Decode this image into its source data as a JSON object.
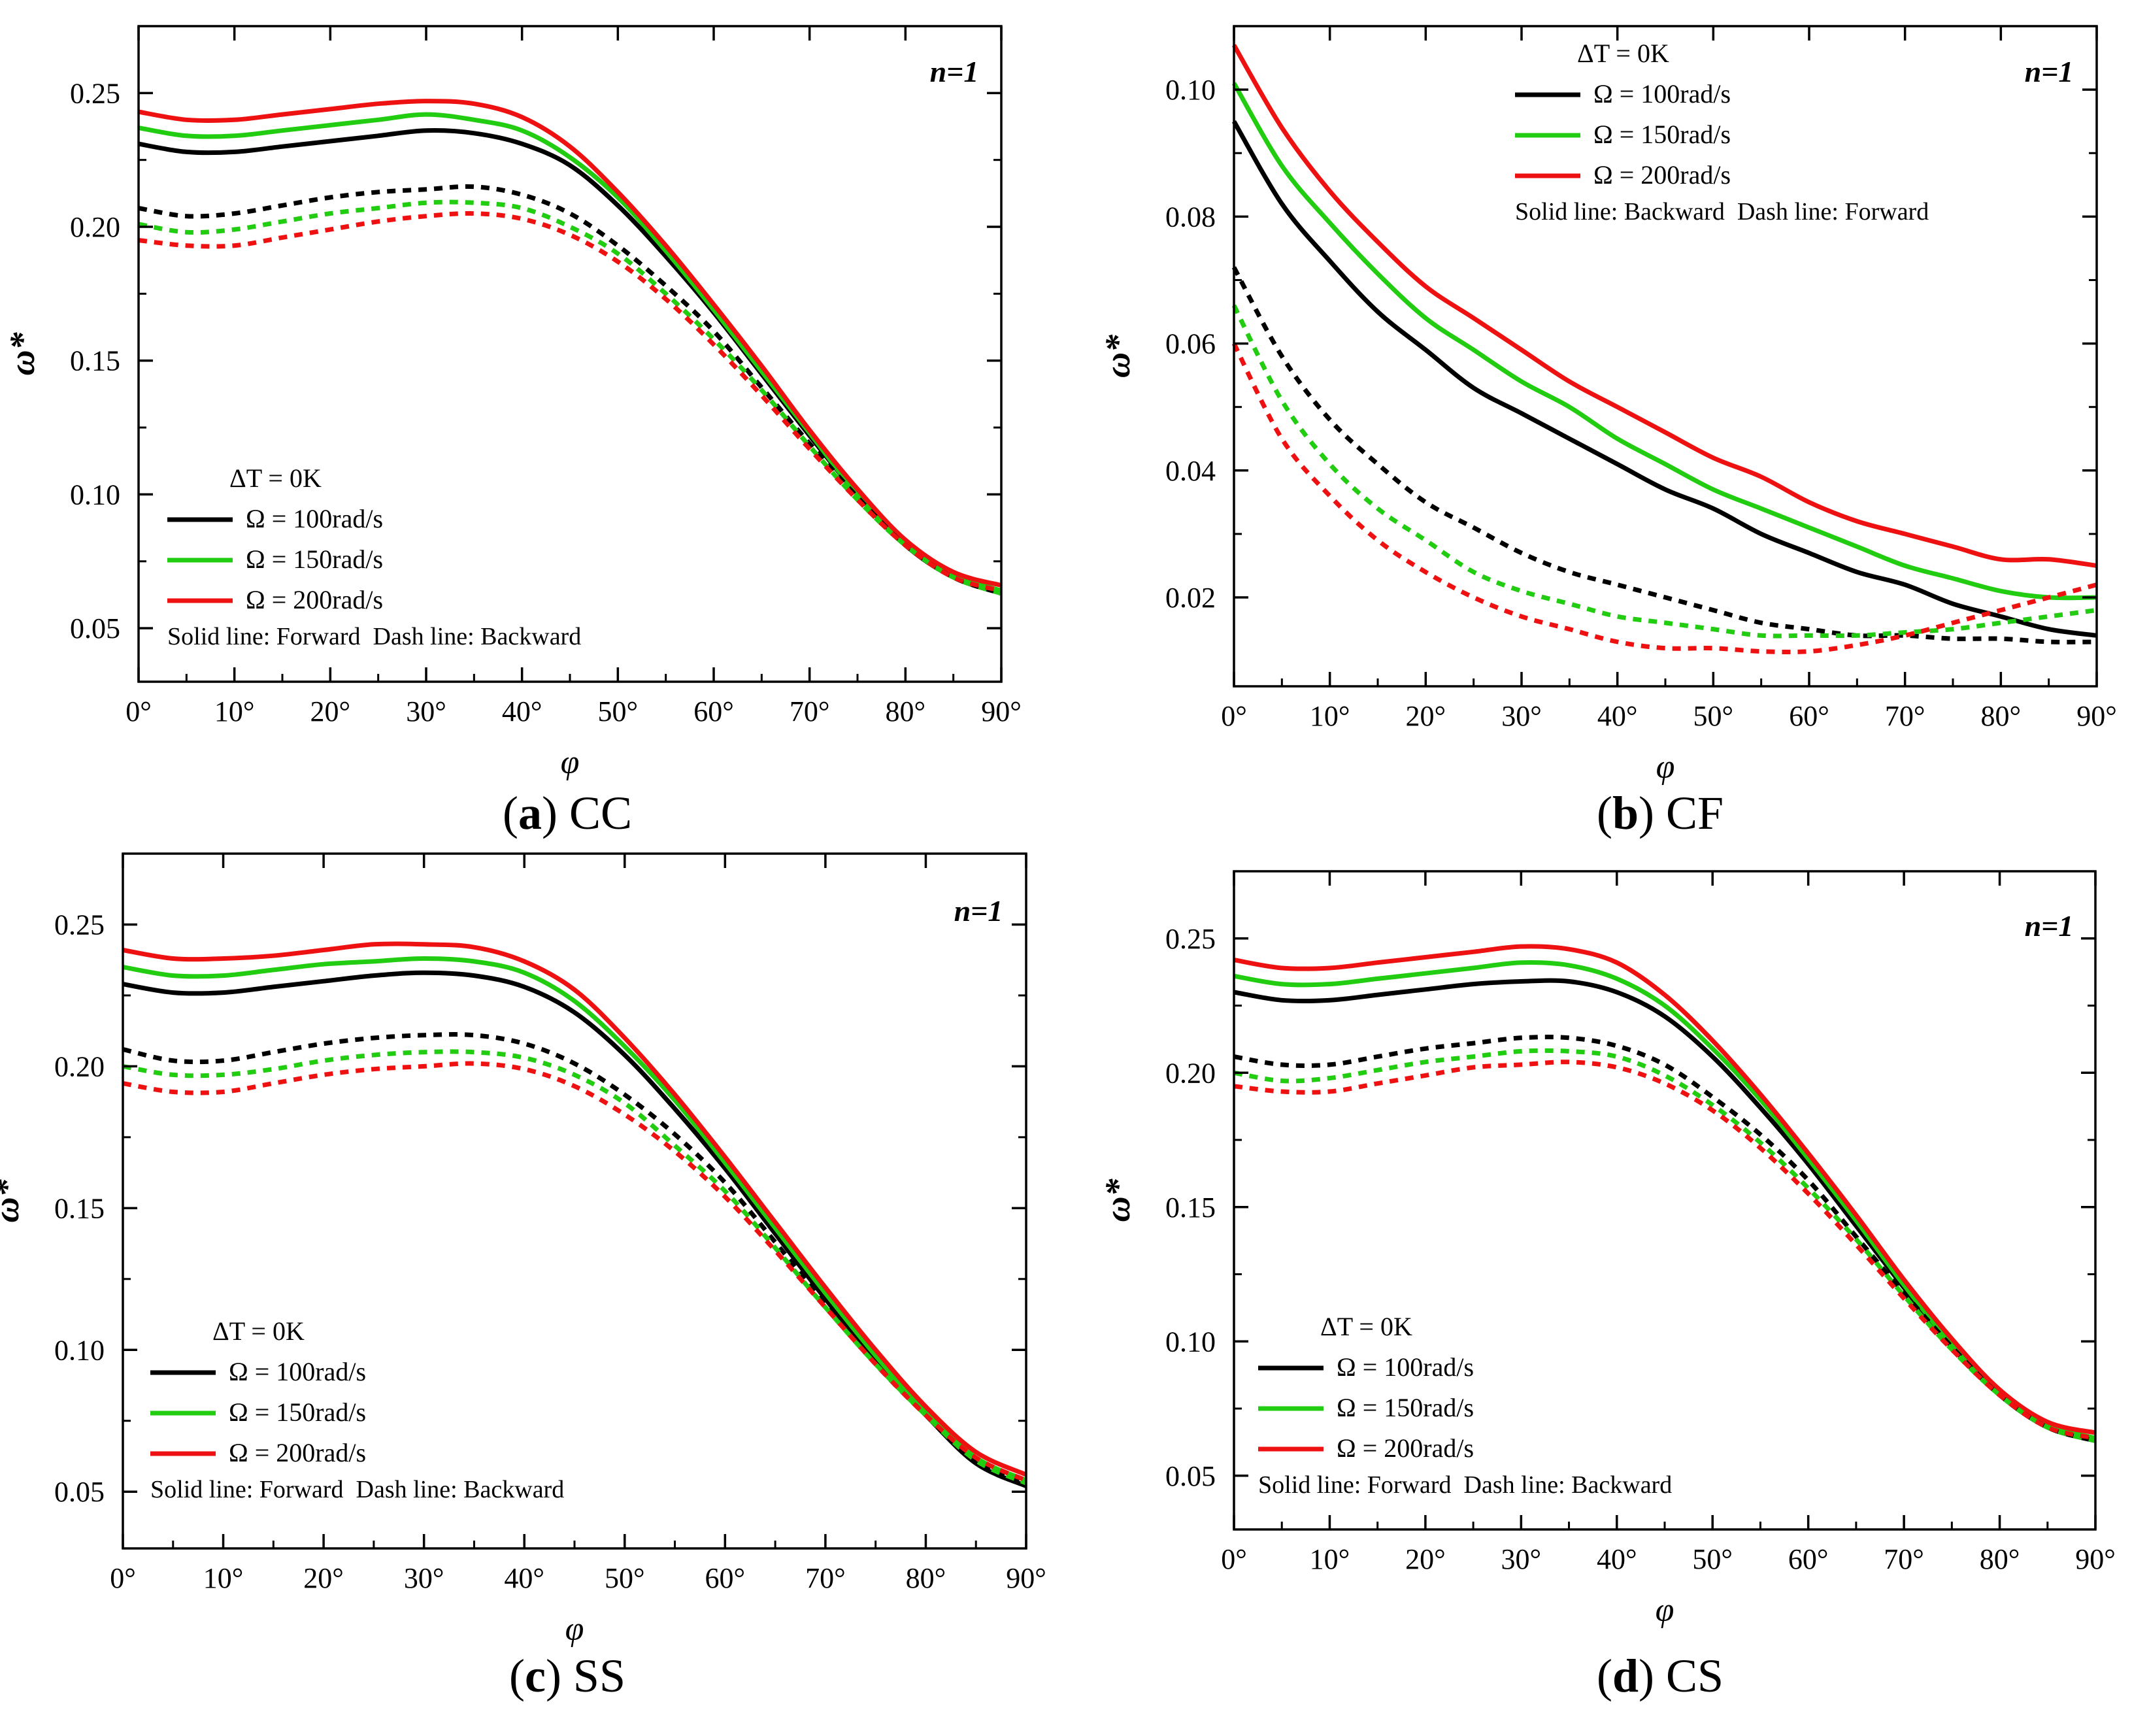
{
  "chart_data": [
    {
      "type": "line",
      "panel_letter": "a",
      "panel_name": "CC",
      "xlabel": "φ",
      "ylabel": "ω*",
      "xlim": [
        0,
        90
      ],
      "ylim": [
        0.03,
        0.275
      ],
      "xticks": [
        "0°",
        "10°",
        "20°",
        "30°",
        "40°",
        "50°",
        "60°",
        "70°",
        "80°",
        "90°"
      ],
      "yticks": [
        "0.05",
        "0.10",
        "0.15",
        "0.20",
        "0.25"
      ],
      "annotation": "n=1",
      "legend": {
        "title": "ΔT = 0K",
        "entries": [
          "Ω = 100rad/s",
          "Ω = 150rad/s",
          "Ω = 200rad/s"
        ],
        "colors": [
          "#000000",
          "#22cc11",
          "#ee1111"
        ],
        "note": "Solid line: Forward  Dash line: Backward",
        "position": "bottom-left"
      },
      "x": [
        0,
        5,
        10,
        15,
        20,
        25,
        30,
        35,
        40,
        45,
        50,
        55,
        60,
        65,
        70,
        75,
        80,
        85,
        90
      ],
      "series": [
        {
          "name": "Ω = 100rad/s",
          "style": "solid",
          "values": [
            0.231,
            0.228,
            0.228,
            0.23,
            0.232,
            0.234,
            0.236,
            0.235,
            0.231,
            0.223,
            0.208,
            0.189,
            0.168,
            0.145,
            0.122,
            0.1,
            0.081,
            0.069,
            0.063
          ]
        },
        {
          "name": "Ω = 150rad/s",
          "style": "solid",
          "values": [
            0.237,
            0.234,
            0.234,
            0.236,
            0.238,
            0.24,
            0.242,
            0.24,
            0.236,
            0.226,
            0.211,
            0.191,
            0.169,
            0.146,
            0.123,
            0.1,
            0.082,
            0.07,
            0.064
          ]
        },
        {
          "name": "Ω = 200rad/s",
          "style": "solid",
          "values": [
            0.243,
            0.24,
            0.24,
            0.242,
            0.244,
            0.246,
            0.247,
            0.246,
            0.241,
            0.23,
            0.213,
            0.193,
            0.171,
            0.148,
            0.124,
            0.102,
            0.083,
            0.071,
            0.066
          ]
        },
        {
          "name": "Ω = 100rad/s",
          "style": "dashed",
          "values": [
            0.207,
            0.204,
            0.205,
            0.208,
            0.211,
            0.213,
            0.214,
            0.215,
            0.212,
            0.205,
            0.193,
            0.178,
            0.161,
            0.14,
            0.119,
            0.099,
            0.081,
            0.069,
            0.063
          ]
        },
        {
          "name": "Ω = 150rad/s",
          "style": "dashed",
          "values": [
            0.201,
            0.198,
            0.199,
            0.202,
            0.205,
            0.207,
            0.209,
            0.209,
            0.207,
            0.2,
            0.19,
            0.175,
            0.158,
            0.139,
            0.118,
            0.098,
            0.081,
            0.069,
            0.063
          ]
        },
        {
          "name": "Ω = 200rad/s",
          "style": "dashed",
          "values": [
            0.195,
            0.193,
            0.193,
            0.196,
            0.199,
            0.202,
            0.204,
            0.205,
            0.203,
            0.197,
            0.187,
            0.173,
            0.156,
            0.137,
            0.117,
            0.098,
            0.081,
            0.069,
            0.064
          ]
        }
      ]
    },
    {
      "type": "line",
      "panel_letter": "b",
      "panel_name": "CF",
      "xlabel": "φ",
      "ylabel": "ω*",
      "xlim": [
        0,
        90
      ],
      "ylim": [
        0.006,
        0.11
      ],
      "xticks": [
        "0°",
        "10°",
        "20°",
        "30°",
        "40°",
        "50°",
        "60°",
        "70°",
        "80°",
        "90°"
      ],
      "yticks": [
        "0.02",
        "0.04",
        "0.06",
        "0.08",
        "0.10"
      ],
      "annotation": "n=1",
      "legend": {
        "title": "ΔT = 0K",
        "entries": [
          "Ω = 100rad/s",
          "Ω = 150rad/s",
          "Ω = 200rad/s"
        ],
        "colors": [
          "#000000",
          "#22cc11",
          "#ee1111"
        ],
        "note": "Solid line: Backward  Dash line: Forward",
        "position": "top-center"
      },
      "x": [
        0,
        5,
        10,
        15,
        20,
        25,
        30,
        35,
        40,
        45,
        50,
        55,
        60,
        65,
        70,
        75,
        80,
        85,
        90
      ],
      "series": [
        {
          "name": "Ω = 100rad/s",
          "style": "solid",
          "values": [
            0.095,
            0.082,
            0.073,
            0.065,
            0.059,
            0.053,
            0.049,
            0.045,
            0.041,
            0.037,
            0.034,
            0.03,
            0.027,
            0.024,
            0.022,
            0.019,
            0.017,
            0.015,
            0.014
          ]
        },
        {
          "name": "Ω = 150rad/s",
          "style": "solid",
          "values": [
            0.101,
            0.088,
            0.079,
            0.071,
            0.064,
            0.059,
            0.054,
            0.05,
            0.045,
            0.041,
            0.037,
            0.034,
            0.031,
            0.028,
            0.025,
            0.023,
            0.021,
            0.02,
            0.02
          ]
        },
        {
          "name": "Ω = 200rad/s",
          "style": "solid",
          "values": [
            0.107,
            0.094,
            0.084,
            0.076,
            0.069,
            0.064,
            0.059,
            0.054,
            0.05,
            0.046,
            0.042,
            0.039,
            0.035,
            0.032,
            0.03,
            0.028,
            0.026,
            0.026,
            0.025
          ]
        },
        {
          "name": "Ω = 100rad/s",
          "style": "dashed",
          "values": [
            0.072,
            0.058,
            0.048,
            0.041,
            0.035,
            0.031,
            0.027,
            0.024,
            0.022,
            0.02,
            0.018,
            0.016,
            0.015,
            0.014,
            0.014,
            0.0135,
            0.0135,
            0.013,
            0.013
          ]
        },
        {
          "name": "Ω = 150rad/s",
          "style": "dashed",
          "values": [
            0.066,
            0.051,
            0.041,
            0.034,
            0.029,
            0.024,
            0.021,
            0.019,
            0.017,
            0.016,
            0.015,
            0.014,
            0.014,
            0.014,
            0.0145,
            0.015,
            0.016,
            0.017,
            0.018
          ]
        },
        {
          "name": "Ω = 200rad/s",
          "style": "dashed",
          "values": [
            0.06,
            0.045,
            0.036,
            0.029,
            0.024,
            0.02,
            0.017,
            0.015,
            0.013,
            0.012,
            0.012,
            0.0115,
            0.0115,
            0.0125,
            0.014,
            0.016,
            0.018,
            0.02,
            0.022
          ]
        }
      ]
    },
    {
      "type": "line",
      "panel_letter": "c",
      "panel_name": "SS",
      "xlabel": "φ",
      "ylabel": "ω*",
      "xlim": [
        0,
        90
      ],
      "ylim": [
        0.03,
        0.275
      ],
      "xticks": [
        "0°",
        "10°",
        "20°",
        "30°",
        "40°",
        "50°",
        "60°",
        "70°",
        "80°",
        "90°"
      ],
      "yticks": [
        "0.05",
        "0.10",
        "0.15",
        "0.20",
        "0.25"
      ],
      "annotation": "n=1",
      "legend": {
        "title": "ΔT = 0K",
        "entries": [
          "Ω = 100rad/s",
          "Ω = 150rad/s",
          "Ω = 200rad/s"
        ],
        "colors": [
          "#000000",
          "#22cc11",
          "#ee1111"
        ],
        "note": "Solid line: Forward  Dash line: Backward",
        "position": "bottom-left"
      },
      "x": [
        0,
        5,
        10,
        15,
        20,
        25,
        30,
        35,
        40,
        45,
        50,
        55,
        60,
        65,
        70,
        75,
        80,
        85,
        90
      ],
      "series": [
        {
          "name": "Ω = 100rad/s",
          "style": "solid",
          "values": [
            0.229,
            0.226,
            0.226,
            0.228,
            0.23,
            0.232,
            0.233,
            0.232,
            0.228,
            0.219,
            0.204,
            0.185,
            0.164,
            0.141,
            0.118,
            0.096,
            0.077,
            0.06,
            0.052
          ]
        },
        {
          "name": "Ω = 150rad/s",
          "style": "solid",
          "values": [
            0.235,
            0.232,
            0.232,
            0.234,
            0.236,
            0.237,
            0.238,
            0.237,
            0.233,
            0.223,
            0.207,
            0.188,
            0.166,
            0.143,
            0.12,
            0.098,
            0.078,
            0.062,
            0.054
          ]
        },
        {
          "name": "Ω = 200rad/s",
          "style": "solid",
          "values": [
            0.241,
            0.238,
            0.238,
            0.239,
            0.241,
            0.243,
            0.243,
            0.242,
            0.237,
            0.227,
            0.21,
            0.19,
            0.168,
            0.145,
            0.122,
            0.1,
            0.08,
            0.064,
            0.056
          ]
        },
        {
          "name": "Ω = 100rad/s",
          "style": "dashed",
          "values": [
            0.206,
            0.202,
            0.202,
            0.205,
            0.208,
            0.21,
            0.211,
            0.211,
            0.208,
            0.201,
            0.19,
            0.176,
            0.159,
            0.138,
            0.116,
            0.095,
            0.077,
            0.061,
            0.053
          ]
        },
        {
          "name": "Ω = 150rad/s",
          "style": "dashed",
          "values": [
            0.2,
            0.197,
            0.197,
            0.199,
            0.202,
            0.204,
            0.205,
            0.205,
            0.203,
            0.197,
            0.187,
            0.172,
            0.156,
            0.136,
            0.115,
            0.095,
            0.077,
            0.061,
            0.053
          ]
        },
        {
          "name": "Ω = 200rad/s",
          "style": "dashed",
          "values": [
            0.194,
            0.191,
            0.191,
            0.194,
            0.197,
            0.199,
            0.2,
            0.201,
            0.199,
            0.193,
            0.183,
            0.17,
            0.154,
            0.135,
            0.115,
            0.095,
            0.077,
            0.062,
            0.054
          ]
        }
      ]
    },
    {
      "type": "line",
      "panel_letter": "d",
      "panel_name": "CS",
      "xlabel": "φ",
      "ylabel": "ω*",
      "xlim": [
        0,
        90
      ],
      "ylim": [
        0.03,
        0.275
      ],
      "xticks": [
        "0°",
        "10°",
        "20°",
        "30°",
        "40°",
        "50°",
        "60°",
        "70°",
        "80°",
        "90°"
      ],
      "yticks": [
        "0.05",
        "0.10",
        "0.15",
        "0.20",
        "0.25"
      ],
      "annotation": "n=1",
      "legend": {
        "title": "ΔT = 0K",
        "entries": [
          "Ω = 100rad/s",
          "Ω = 150rad/s",
          "Ω = 200rad/s"
        ],
        "colors": [
          "#000000",
          "#22cc11",
          "#ee1111"
        ],
        "note": "Solid line: Forward  Dash line: Backward",
        "position": "bottom-left"
      },
      "x": [
        0,
        5,
        10,
        15,
        20,
        25,
        30,
        35,
        40,
        45,
        50,
        55,
        60,
        65,
        70,
        75,
        80,
        85,
        90
      ],
      "series": [
        {
          "name": "Ω = 100rad/s",
          "style": "solid",
          "values": [
            0.23,
            0.227,
            0.227,
            0.229,
            0.231,
            0.233,
            0.234,
            0.234,
            0.23,
            0.221,
            0.206,
            0.187,
            0.166,
            0.143,
            0.12,
            0.098,
            0.08,
            0.068,
            0.063
          ]
        },
        {
          "name": "Ω = 150rad/s",
          "style": "solid",
          "values": [
            0.236,
            0.233,
            0.233,
            0.235,
            0.237,
            0.239,
            0.241,
            0.24,
            0.235,
            0.225,
            0.209,
            0.19,
            0.168,
            0.145,
            0.121,
            0.099,
            0.081,
            0.069,
            0.064
          ]
        },
        {
          "name": "Ω = 200rad/s",
          "style": "solid",
          "values": [
            0.242,
            0.239,
            0.239,
            0.241,
            0.243,
            0.245,
            0.247,
            0.246,
            0.241,
            0.229,
            0.212,
            0.192,
            0.17,
            0.147,
            0.123,
            0.101,
            0.082,
            0.07,
            0.066
          ]
        },
        {
          "name": "Ω = 100rad/s",
          "style": "dashed",
          "values": [
            0.206,
            0.203,
            0.203,
            0.206,
            0.209,
            0.211,
            0.213,
            0.213,
            0.21,
            0.203,
            0.191,
            0.177,
            0.16,
            0.139,
            0.118,
            0.098,
            0.08,
            0.068,
            0.063
          ]
        },
        {
          "name": "Ω = 150rad/s",
          "style": "dashed",
          "values": [
            0.2,
            0.197,
            0.198,
            0.201,
            0.204,
            0.206,
            0.208,
            0.208,
            0.206,
            0.199,
            0.188,
            0.174,
            0.157,
            0.138,
            0.117,
            0.097,
            0.08,
            0.068,
            0.063
          ]
        },
        {
          "name": "Ω = 200rad/s",
          "style": "dashed",
          "values": [
            0.195,
            0.193,
            0.193,
            0.196,
            0.199,
            0.202,
            0.203,
            0.204,
            0.202,
            0.196,
            0.186,
            0.172,
            0.155,
            0.136,
            0.116,
            0.097,
            0.08,
            0.068,
            0.064
          ]
        }
      ]
    }
  ]
}
